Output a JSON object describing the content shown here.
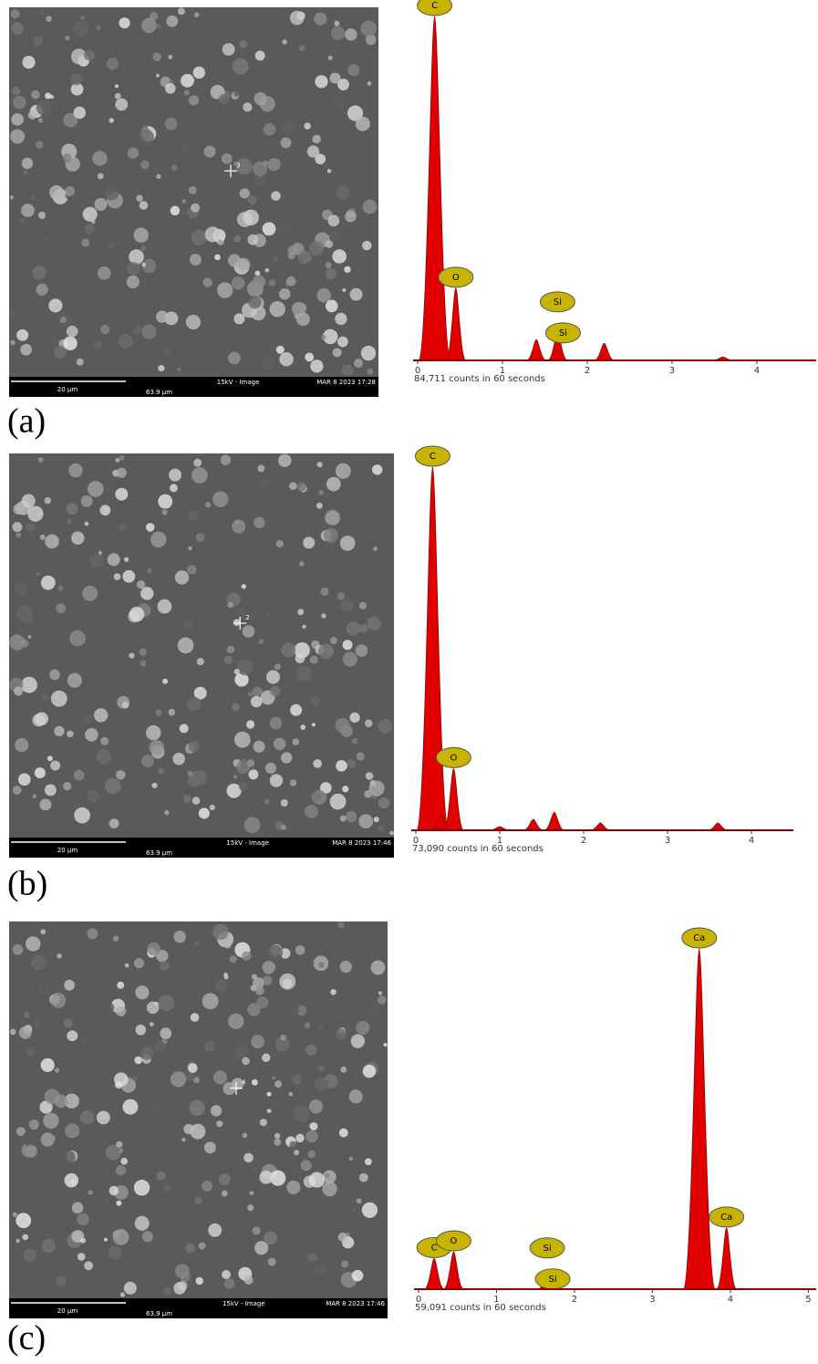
{
  "chart_data": [
    {
      "type": "spectrum",
      "panel_label": "(a)",
      "caption": "84,711 counts in 60 seconds",
      "sem": {
        "scale_bar": "20 µm",
        "field_width": "63.9 µm",
        "mode": "15kV - Image",
        "date": "MAR 8 2023 17:28",
        "point": "3"
      },
      "xlim": [
        0,
        4.7
      ],
      "xticks": [
        0,
        1,
        2,
        3,
        4
      ],
      "ylim": [
        0,
        100
      ],
      "x": [
        0.2,
        0.45,
        1.4,
        1.65,
        2.2,
        3.6
      ],
      "values": [
        100,
        21,
        6,
        8,
        5,
        1
      ],
      "labels": [
        [
          "C"
        ],
        [
          "O"
        ],
        [],
        [
          "Si",
          "Si"
        ],
        [],
        []
      ],
      "color": "#e00000"
    },
    {
      "type": "spectrum",
      "panel_label": "(b)",
      "caption": "73,090 counts in 60 seconds",
      "sem": {
        "scale_bar": "20 µm",
        "field_width": "63.9 µm",
        "mode": "15kV - Image",
        "date": "MAR 8 2023 17:46",
        "point": "2"
      },
      "xlim": [
        0,
        4.5
      ],
      "xticks": [
        0,
        1,
        2,
        3,
        4
      ],
      "ylim": [
        0,
        100
      ],
      "x": [
        0.2,
        0.3,
        0.45,
        1.0,
        1.4,
        1.65,
        2.2,
        3.6
      ],
      "values": [
        100,
        4,
        17,
        1,
        3,
        5,
        2,
        2
      ],
      "labels": [
        [
          "C"
        ],
        [],
        [
          "O"
        ],
        [],
        [],
        [],
        [],
        []
      ],
      "color": "#e00000"
    },
    {
      "type": "spectrum",
      "panel_label": "(c)",
      "caption": "59,091 counts in 60 seconds",
      "sem": {
        "scale_bar": "20 µm",
        "field_width": "63.9 µm",
        "mode": "15kV - Image",
        "date": "MAR 8 2023 17:46",
        "point": "4"
      },
      "xlim": [
        0,
        5.1
      ],
      "xticks": [
        0,
        1,
        2,
        3,
        4,
        5
      ],
      "ylim": [
        0,
        100
      ],
      "x": [
        0.2,
        0.45,
        1.65,
        3.6,
        3.95
      ],
      "values": [
        9,
        11,
        3,
        100,
        18
      ],
      "labels": [
        [
          "C"
        ],
        [
          "O"
        ],
        [
          "Si",
          "Si"
        ],
        [
          "Ca"
        ],
        [
          "Ca"
        ]
      ],
      "color": "#e00000"
    }
  ]
}
